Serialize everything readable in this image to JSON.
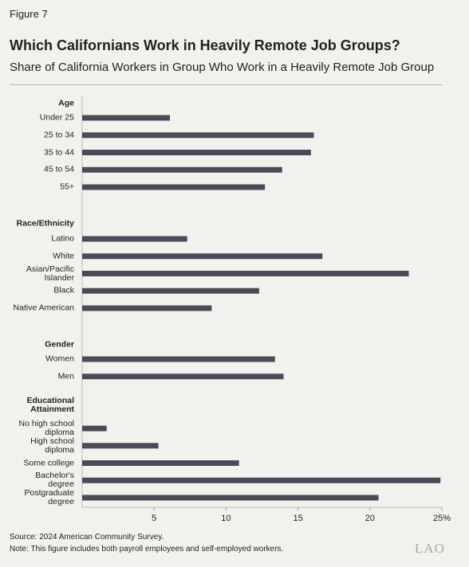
{
  "chart_data": {
    "type": "bar",
    "orientation": "horizontal",
    "figure": "Figure 7",
    "title": "Which Californians Work in Heavily Remote Job Groups?",
    "subtitle": "Share of California Workers in Group Who Work in a Heavily Remote Job Group",
    "color": "#4a4a58",
    "xlim": [
      0,
      25
    ],
    "xticks": [
      5,
      10,
      15,
      20,
      {
        "value": 25,
        "label": "25%"
      }
    ],
    "groups": [
      {
        "name": "Age",
        "categories": [
          "Under 25",
          "25 to 34",
          "35 to 44",
          "45 to 54",
          "55+"
        ],
        "values": [
          6.1,
          16.1,
          15.9,
          13.9,
          12.7
        ]
      },
      {
        "name": "Race/Ethnicity",
        "categories": [
          "Latino",
          "White",
          "Asian/Pacific Islander",
          "Black",
          "Native American"
        ],
        "values": [
          7.3,
          16.7,
          22.7,
          12.3,
          9.0
        ]
      },
      {
        "name": "Gender",
        "categories": [
          "Women",
          "Men"
        ],
        "values": [
          13.4,
          14.0
        ]
      },
      {
        "name": "Educational Attainment",
        "categories": [
          "No high school diploma",
          "High school diploma",
          "Some college",
          "Bachelor's degree",
          "Postgraduate degree"
        ],
        "values": [
          1.7,
          5.3,
          10.9,
          24.9,
          20.6
        ]
      }
    ],
    "source": "Source: 2024 American Community Survey.",
    "note": "Note: This figure includes both payroll employees and self-employed workers.",
    "logo": "LAO"
  }
}
